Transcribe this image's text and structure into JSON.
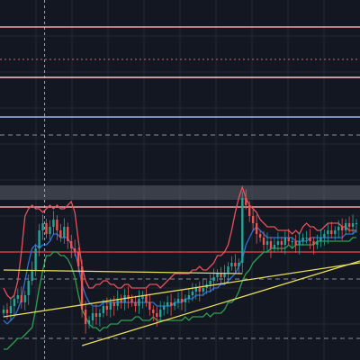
{
  "colors": {
    "background": "#131722",
    "grid": "#232733",
    "band_shade": "#6b6f7a",
    "candle_up": "#26a69a",
    "candle_down": "#ef5350",
    "bb_upper": "#e8505b",
    "bb_basis": "#2f6fd6",
    "bb_lower": "#2e9e4f",
    "trend_yellow": "#e8de5a",
    "crosshair": "#c8cbd3"
  },
  "chart_data": {
    "type": "candlestick",
    "title": "",
    "xlabel": "",
    "ylabel": "",
    "ylim": [
      0,
      100
    ],
    "grid": true,
    "indicators": [
      "bollinger-upper",
      "bollinger-basis",
      "bollinger-lower"
    ],
    "horizontal_levels": [
      {
        "name": "level-1",
        "value": 92.5,
        "color": "#f2a6a6",
        "style": "solid"
      },
      {
        "name": "level-2",
        "value": 83.5,
        "color": "#d46a6a",
        "style": "dotted"
      },
      {
        "name": "level-3",
        "value": 78.5,
        "color": "#f7c9c9",
        "style": "solid"
      },
      {
        "name": "level-4",
        "value": 67.5,
        "color": "#9fb6ff",
        "style": "solid"
      },
      {
        "name": "level-5",
        "value": 62.5,
        "color": "#8a8f99",
        "style": "dashed"
      },
      {
        "name": "level-6",
        "value": 42.5,
        "color": "#f2a6a6",
        "style": "solid"
      },
      {
        "name": "level-7",
        "value": 30.0,
        "color": "#d03a3a",
        "style": "solid"
      },
      {
        "name": "level-8",
        "value": 22.5,
        "color": "#8a8f99",
        "style": "dashed"
      },
      {
        "name": "level-9",
        "value": 6.0,
        "color": "#8a8f99",
        "style": "dashed"
      }
    ],
    "zones": [
      {
        "name": "zone-upper",
        "from": 44.5,
        "to": 48.5
      }
    ],
    "trendlines": [
      {
        "name": "trend-upper",
        "x": [
          0,
          100
        ],
        "y": [
          12,
          27
        ]
      },
      {
        "name": "trend-lower",
        "x": [
          22,
          100
        ],
        "y": [
          4,
          27.5
        ]
      },
      {
        "name": "trend-flat",
        "x": [
          0,
          67
        ],
        "y": [
          25,
          24
        ]
      }
    ],
    "crosshair_x": 11.5,
    "x": [
      0,
      1,
      2,
      3,
      4,
      5,
      6,
      7,
      8,
      9,
      10,
      11,
      12,
      13,
      14,
      15,
      16,
      17,
      18,
      19,
      20,
      21,
      22,
      23,
      24,
      25,
      26,
      27,
      28,
      29,
      30,
      31,
      32,
      33,
      34,
      35,
      36,
      37,
      38,
      39,
      40,
      41,
      42,
      43,
      44,
      45,
      46,
      47,
      48,
      49,
      50,
      51,
      52,
      53,
      54,
      55,
      56,
      57,
      58,
      59,
      60,
      61,
      62,
      63,
      64,
      65,
      66,
      67,
      68,
      69,
      70,
      71,
      72,
      73,
      74,
      75,
      76,
      77,
      78,
      79,
      80,
      81,
      82,
      83,
      84,
      85,
      86,
      87,
      88,
      89,
      90,
      91,
      92,
      93,
      94,
      95,
      96,
      97,
      98,
      99
    ],
    "close": [
      14,
      13,
      15,
      17,
      18,
      16,
      18,
      22,
      25,
      31,
      36,
      38,
      35,
      37,
      39,
      36,
      34,
      37,
      33,
      31,
      30,
      26,
      14,
      10,
      11,
      13,
      12,
      13,
      15,
      14,
      16,
      15,
      17,
      16,
      18,
      17,
      16,
      15,
      17,
      18,
      16,
      14,
      13,
      12,
      14,
      15,
      16,
      15,
      16,
      17,
      16,
      17,
      18,
      19,
      20,
      19,
      20,
      21,
      22,
      23,
      24,
      23,
      24,
      26,
      27,
      26,
      27,
      45,
      43,
      40,
      38,
      35,
      34,
      32,
      33,
      31,
      32,
      33,
      32,
      34,
      33,
      33,
      32,
      33,
      34,
      34,
      33,
      32,
      33,
      34,
      35,
      36,
      35,
      36,
      37,
      36,
      38,
      37,
      38,
      38
    ],
    "bb_upper": [
      20,
      18,
      17,
      18,
      22,
      30,
      40,
      42,
      43,
      42,
      42,
      41,
      42,
      43,
      42,
      43,
      42,
      42,
      43,
      44,
      41,
      33,
      26,
      22,
      20,
      20,
      21,
      21,
      22,
      22,
      21,
      21,
      20,
      20,
      21,
      21,
      20,
      20,
      20,
      20,
      20,
      21,
      21,
      21,
      20,
      21,
      22,
      23,
      24,
      24,
      24,
      24,
      24,
      25,
      25,
      26,
      25,
      25,
      26,
      27,
      29,
      29,
      30,
      32,
      36,
      41,
      45,
      48,
      45,
      43,
      42,
      41,
      39,
      38,
      37,
      37,
      37,
      36,
      36,
      36,
      36,
      35,
      36,
      35,
      37,
      38,
      37,
      37,
      36,
      36,
      37,
      38,
      38,
      38,
      38,
      37,
      37,
      36,
      36,
      36
    ],
    "bb_basis": [
      11,
      10,
      11,
      12,
      14,
      17,
      22,
      27,
      31,
      32,
      31,
      32,
      32,
      33,
      35,
      35,
      34,
      34,
      34,
      32,
      30,
      26,
      21,
      18,
      16,
      15,
      15,
      15,
      16,
      16,
      16,
      16,
      16,
      16,
      16,
      16,
      16,
      16,
      16,
      16,
      16,
      16,
      16,
      15,
      15,
      15,
      15,
      15,
      16,
      16,
      16,
      17,
      17,
      17,
      18,
      18,
      18,
      19,
      19,
      20,
      20,
      21,
      21,
      22,
      23,
      24,
      26,
      28,
      32,
      34,
      36,
      37,
      36,
      35,
      34,
      34,
      34,
      34,
      34,
      34,
      34,
      34,
      33,
      33,
      33,
      33,
      34,
      34,
      34,
      34,
      34,
      34,
      34,
      34,
      34,
      34,
      35,
      35,
      35,
      36
    ],
    "bb_lower": [
      3,
      3,
      4,
      5,
      6,
      6,
      7,
      8,
      9,
      14,
      20,
      25,
      29,
      29,
      30,
      30,
      29,
      29,
      28,
      26,
      23,
      18,
      14,
      12,
      10,
      9,
      9,
      8,
      9,
      9,
      10,
      10,
      10,
      11,
      11,
      11,
      11,
      12,
      12,
      11,
      11,
      11,
      12,
      11,
      11,
      11,
      11,
      11,
      11,
      11,
      11,
      12,
      11,
      12,
      12,
      12,
      12,
      13,
      12,
      13,
      13,
      13,
      14,
      16,
      16,
      17,
      19,
      22,
      24,
      25,
      27,
      28,
      29,
      30,
      30,
      31,
      31,
      31,
      31,
      31,
      32,
      31,
      32,
      32,
      32,
      32,
      32,
      32,
      33,
      33,
      33,
      33,
      33,
      33,
      33,
      33,
      33,
      33,
      34,
      34
    ]
  }
}
